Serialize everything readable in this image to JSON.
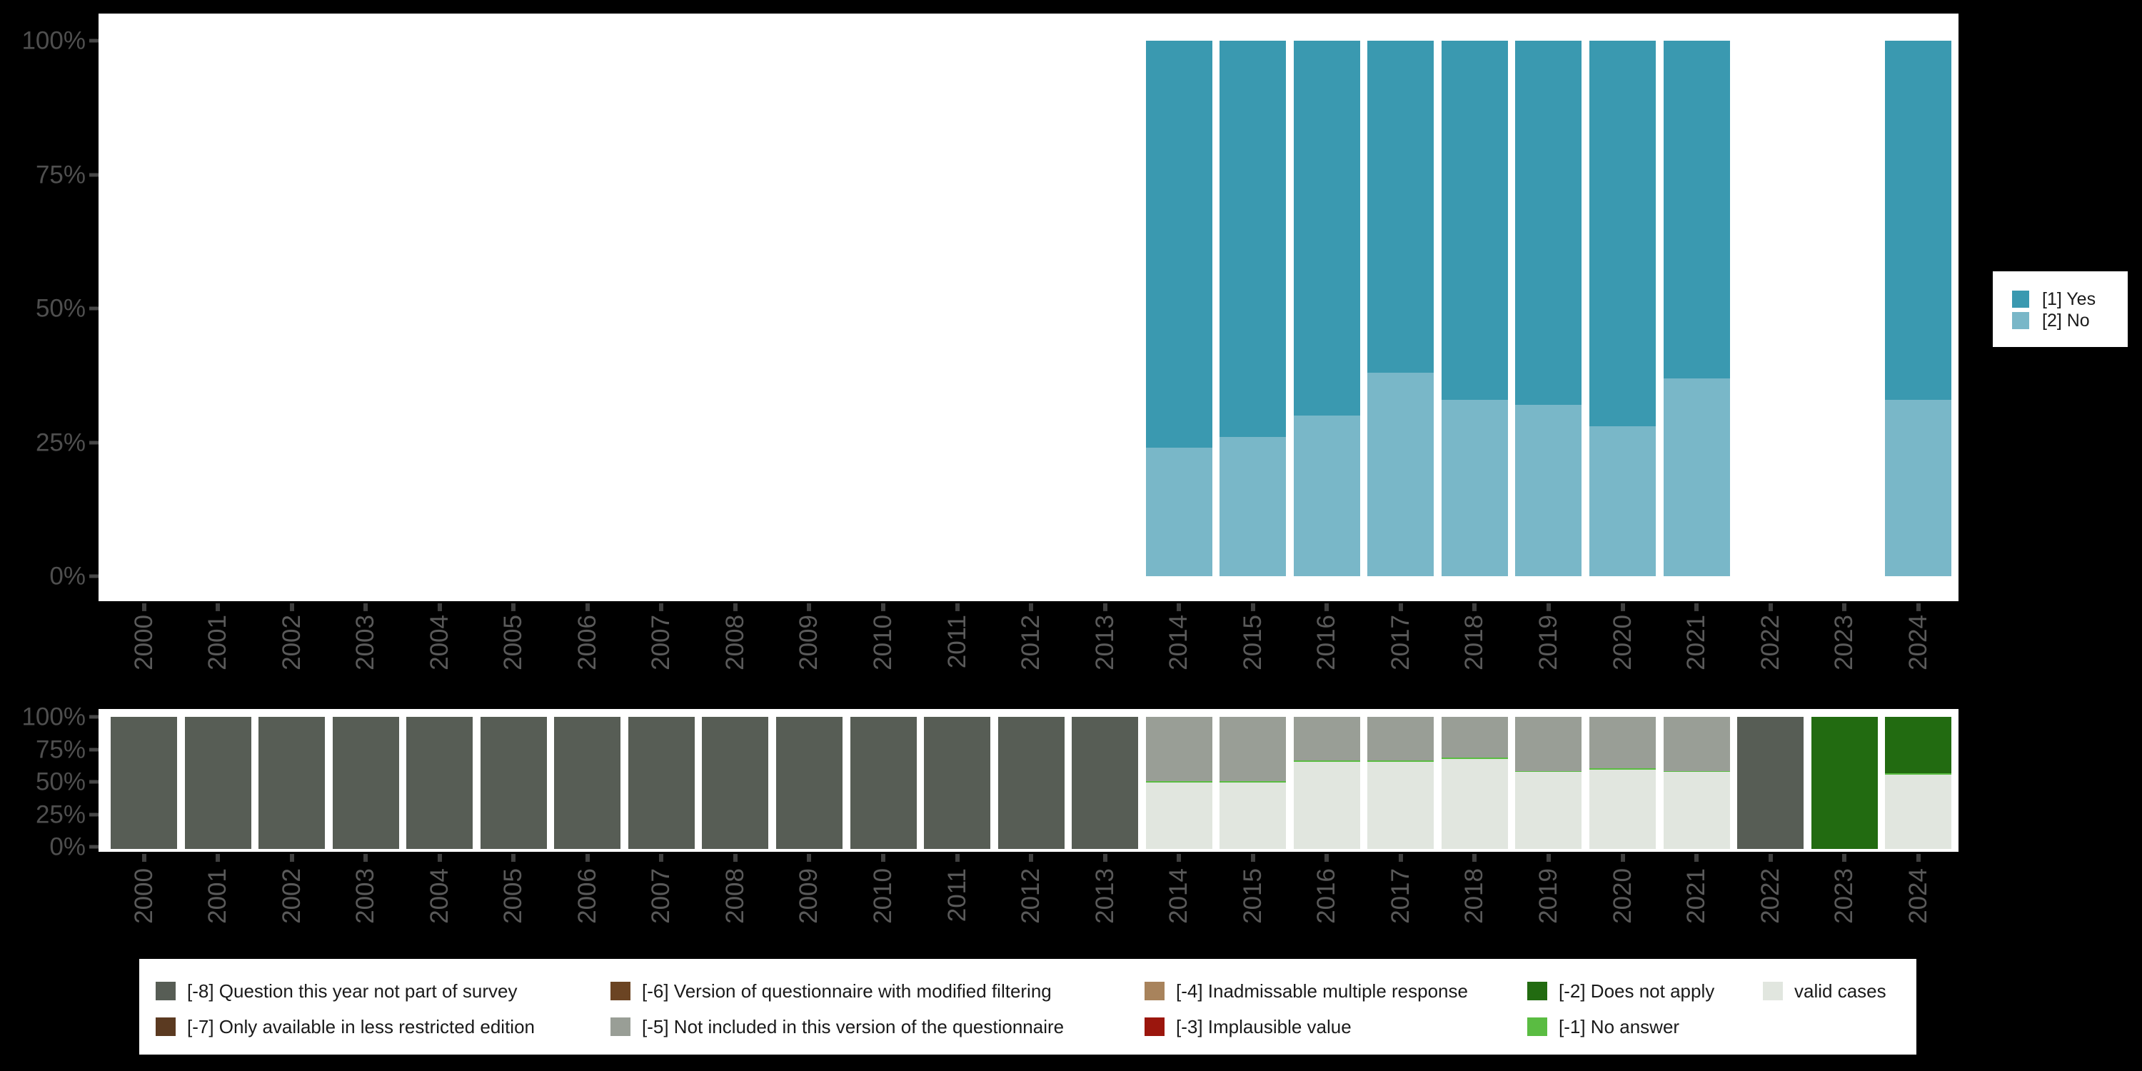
{
  "figure": {
    "background_color": "#000000",
    "plot_background_color": "#ffffff",
    "axis_text_color": "#4f4f4f"
  },
  "side_legend": {
    "items": [
      {
        "label": "[1] Yes",
        "color": "#3a99b0"
      },
      {
        "label": "[2] No",
        "color": "#79b7c8"
      }
    ]
  },
  "bottom_legend": {
    "columns": [
      [
        {
          "label": "[-8] Question this year not part of survey",
          "color": "#575d55"
        },
        {
          "label": "[-7] Only available in less restricted edition",
          "color": "#5b3a21"
        }
      ],
      [
        {
          "label": "[-6] Version of questionnaire with modified filtering",
          "color": "#6b4423"
        },
        {
          "label": "[-5] Not included in this version of the questionnaire",
          "color": "#999e96"
        }
      ],
      [
        {
          "label": "[-4] Inadmissable multiple response",
          "color": "#a8835c"
        },
        {
          "label": "[-3] Implausible value",
          "color": "#9b160d"
        }
      ],
      [
        {
          "label": "[-2] Does not apply",
          "color": "#226b11"
        },
        {
          "label": "[-1] No answer",
          "color": "#5abc42"
        }
      ],
      [
        {
          "label": "valid cases",
          "color": "#e1e6df"
        }
      ]
    ]
  },
  "chart_data": [
    {
      "name": "responses-over-time",
      "type": "bar",
      "stacked": true,
      "unit": "percent",
      "ylim": [
        0,
        100
      ],
      "y_ticks": [
        "100%",
        "75%",
        "50%",
        "25%",
        "0%"
      ],
      "legend_position": "right",
      "categories": [
        "2000",
        "2001",
        "2002",
        "2003",
        "2004",
        "2005",
        "2006",
        "2007",
        "2008",
        "2009",
        "2010",
        "2011",
        "2012",
        "2013",
        "2014",
        "2015",
        "2016",
        "2017",
        "2018",
        "2019",
        "2020",
        "2021",
        "2022",
        "2023",
        "2024"
      ],
      "series_order": "bottom-to-top",
      "series": [
        {
          "name": "[2] No",
          "color": "#79b7c8",
          "values": [
            null,
            null,
            null,
            null,
            null,
            null,
            null,
            null,
            null,
            null,
            null,
            null,
            null,
            null,
            24,
            26,
            30,
            38,
            33,
            32,
            28,
            37,
            null,
            null,
            33
          ]
        },
        {
          "name": "[1] Yes",
          "color": "#3a99b0",
          "values": [
            null,
            null,
            null,
            null,
            null,
            null,
            null,
            null,
            null,
            null,
            null,
            null,
            null,
            null,
            76,
            74,
            70,
            62,
            67,
            68,
            72,
            63,
            null,
            null,
            67
          ]
        }
      ]
    },
    {
      "name": "missing-values-over-time",
      "type": "bar",
      "stacked": true,
      "unit": "percent",
      "ylim": [
        0,
        100
      ],
      "y_ticks": [
        "100%",
        "75%",
        "50%",
        "25%",
        "0%"
      ],
      "legend_position": "bottom",
      "categories": [
        "2000",
        "2001",
        "2002",
        "2003",
        "2004",
        "2005",
        "2006",
        "2007",
        "2008",
        "2009",
        "2010",
        "2011",
        "2012",
        "2013",
        "2014",
        "2015",
        "2016",
        "2017",
        "2018",
        "2019",
        "2020",
        "2021",
        "2022",
        "2023",
        "2024"
      ],
      "series_order": "bottom-to-top",
      "series": [
        {
          "name": "valid cases",
          "color": "#e1e6df",
          "values": [
            0,
            0,
            0,
            0,
            0,
            0,
            0,
            0,
            0,
            0,
            0,
            0,
            0,
            0,
            50,
            50,
            66,
            66,
            68,
            58,
            60,
            58,
            0,
            0,
            56
          ]
        },
        {
          "name": "[-1] No answer",
          "color": "#5abc42",
          "values": [
            0,
            0,
            0,
            0,
            0,
            0,
            0,
            0,
            0,
            0,
            0,
            0,
            0,
            0,
            1,
            1,
            1,
            1,
            1,
            1,
            1,
            1,
            0,
            0,
            1
          ]
        },
        {
          "name": "[-2] Does not apply",
          "color": "#226b11",
          "values": [
            0,
            0,
            0,
            0,
            0,
            0,
            0,
            0,
            0,
            0,
            0,
            0,
            0,
            0,
            0,
            0,
            0,
            0,
            0,
            0,
            0,
            0,
            0,
            100,
            43
          ]
        },
        {
          "name": "[-5] Not included in this version of the questionnaire",
          "color": "#999e96",
          "values": [
            0,
            0,
            0,
            0,
            0,
            0,
            0,
            0,
            0,
            0,
            0,
            0,
            0,
            0,
            49,
            49,
            33,
            33,
            31,
            41,
            39,
            41,
            0,
            0,
            0
          ]
        },
        {
          "name": "[-8] Question this year not part of survey",
          "color": "#575d55",
          "values": [
            100,
            100,
            100,
            100,
            100,
            100,
            100,
            100,
            100,
            100,
            100,
            100,
            100,
            100,
            0,
            0,
            0,
            0,
            0,
            0,
            0,
            0,
            100,
            0,
            0
          ]
        }
      ]
    }
  ]
}
